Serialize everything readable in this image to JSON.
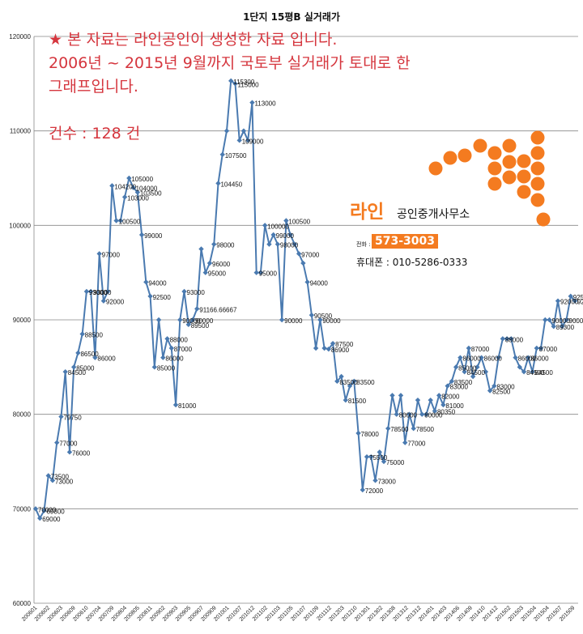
{
  "chart_data": {
    "type": "line",
    "title": "1단지 15평B 실거래가",
    "ylim": [
      60000,
      120000
    ],
    "yticks": [
      "60000",
      "70000",
      "80000",
      "90000",
      "100000",
      "110000",
      "120000"
    ],
    "xticks": [
      "200601",
      "200602",
      "200603",
      "200609",
      "200610",
      "200704",
      "200709",
      "200804",
      "200805",
      "200811",
      "200902",
      "200903",
      "200905",
      "200907",
      "200909",
      "201001",
      "201007",
      "201012",
      "201102",
      "201103",
      "201105",
      "201107",
      "201109",
      "201112",
      "201203",
      "201210",
      "201301",
      "201302",
      "201308",
      "201312",
      "201312",
      "201401",
      "201403",
      "201406",
      "201409",
      "201410",
      "201412",
      "201502",
      "201503",
      "201504",
      "201504",
      "201507",
      "201509"
    ],
    "grid": true,
    "legend": "none",
    "color": "#4a7ab0",
    "values": [
      70000,
      69000,
      69800,
      73500,
      73000,
      77000,
      79750,
      84500,
      76000,
      85000,
      86500,
      88500,
      93000,
      93000,
      86000,
      97000,
      92000,
      93000,
      104200,
      100500,
      100500,
      103000,
      105000,
      104000,
      103500,
      99000,
      94000,
      92500,
      85000,
      90000,
      86000,
      88000,
      87000,
      81000,
      90000,
      93000,
      89500,
      90000,
      91167,
      97500,
      95000,
      96000,
      98000,
      104450,
      107500,
      110000,
      115300,
      115000,
      109000,
      110000,
      109000,
      113000,
      95000,
      95000,
      100000,
      98000,
      99000,
      98000,
      90000,
      100500,
      99000,
      98000,
      97000,
      96000,
      94000,
      90500,
      87000,
      90000,
      87000,
      86900,
      87500,
      83500,
      84000,
      81500,
      83000,
      83500,
      78000,
      72000,
      75500,
      75500,
      73000,
      76000,
      75000,
      78500,
      82000,
      80000,
      82000,
      77000,
      80000,
      78500,
      81500,
      80000,
      80000,
      81500,
      80350,
      82000,
      81000,
      83000,
      83500,
      85000,
      86000,
      84500,
      87000,
      84000,
      85000,
      86000,
      84500,
      82500,
      83000,
      86000,
      88000,
      88000,
      88000,
      86000,
      85000,
      84500,
      86000,
      84500,
      87000,
      87000,
      90000,
      90000,
      89300,
      92000,
      89300,
      90000,
      92500,
      92000
    ],
    "labels": [
      "70000",
      "69000",
      "69800",
      "73500",
      "73000",
      "77000",
      "79750",
      "84500",
      "76000",
      "85000",
      "86500",
      "88500",
      "93000",
      "93000",
      "86000",
      "97000",
      "92000",
      "",
      "104200",
      "100500",
      "",
      "103000",
      "105000",
      "104000",
      "103500",
      "99000",
      "94000",
      "92500",
      "85000",
      "",
      "86000",
      "88000",
      "87000",
      "81000",
      "90000",
      "93000",
      "89500",
      "90000",
      "91166.66667",
      "",
      "95000",
      "96000",
      "98000",
      "104450",
      "107500",
      "",
      "115300",
      "115000",
      "109000",
      "",
      "",
      "113000",
      "95000",
      "",
      "100000",
      "",
      "99000",
      "98000",
      "90000",
      "100500",
      "",
      "",
      "97000",
      "",
      "94000",
      "90500",
      "",
      "90000",
      "",
      "86900",
      "87500",
      "83500",
      "",
      "81500",
      "",
      "83500",
      "78000",
      "72000",
      "75500",
      "",
      "73000",
      "",
      "75000",
      "78500",
      "",
      "80000",
      "",
      "77000",
      "",
      "78500",
      "",
      "80000",
      "",
      "",
      "80350",
      "82000",
      "81000",
      "83000",
      "83500",
      "85000",
      "86000",
      "84500",
      "87000",
      "",
      "",
      "86000",
      "",
      "82500",
      "83000",
      "",
      "88000",
      "",
      "",
      "86000",
      "",
      "84500",
      "86000",
      "84500",
      "87000",
      "",
      "",
      "90000",
      "89300",
      "92000",
      "",
      "90000",
      "92500",
      "92000"
    ]
  },
  "notes": {
    "line1": "★ 본 자료는 라인공인이 생성한 자료 입니다.",
    "line2": "2006년 ~ 2015년 9월까지 국토부 실거래가 토대로 한",
    "line3": "그래프입니다.",
    "count": "건수 : 128 건"
  },
  "ad": {
    "brand": "라인",
    "subtitle": "공인중개사무소",
    "tel_label": "전화 :",
    "tel": "573-3003",
    "mobile": "휴대폰 : 010-5286-0333",
    "logo_color": "#f47b20"
  }
}
